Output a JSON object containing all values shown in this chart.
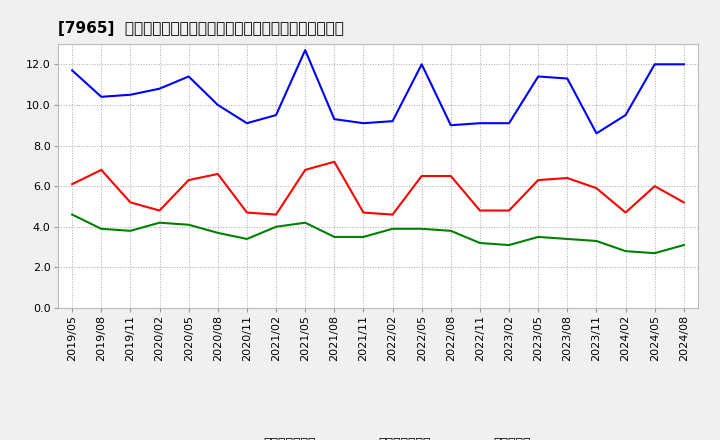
{
  "title": "[7965]  売上債権回転率、買入債務回転率、在庫回転率の推移",
  "dates": [
    "2019/05",
    "2019/08",
    "2019/11",
    "2020/02",
    "2020/05",
    "2020/08",
    "2020/11",
    "2021/02",
    "2021/05",
    "2021/08",
    "2021/11",
    "2022/02",
    "2022/05",
    "2022/08",
    "2022/11",
    "2023/02",
    "2023/05",
    "2023/08",
    "2023/11",
    "2024/02",
    "2024/05",
    "2024/08"
  ],
  "receivables": [
    6.1,
    6.8,
    5.2,
    4.8,
    6.3,
    6.6,
    4.7,
    4.6,
    6.8,
    7.2,
    4.7,
    4.6,
    6.5,
    6.5,
    4.8,
    4.8,
    6.3,
    6.4,
    5.9,
    4.7,
    6.0,
    5.2
  ],
  "payables": [
    11.7,
    10.4,
    10.5,
    10.8,
    11.4,
    10.0,
    9.1,
    9.5,
    12.7,
    9.3,
    9.1,
    9.2,
    12.0,
    9.0,
    9.1,
    9.1,
    11.4,
    11.3,
    8.6,
    9.5,
    12.0,
    12.0
  ],
  "inventory": [
    4.6,
    3.9,
    3.8,
    4.2,
    4.1,
    3.7,
    3.4,
    4.0,
    4.2,
    3.5,
    3.5,
    3.9,
    3.9,
    3.8,
    3.2,
    3.1,
    3.5,
    3.4,
    3.3,
    2.8,
    2.7,
    3.1
  ],
  "receivables_color": "#ff0000",
  "payables_color": "#0000ff",
  "inventory_color": "#008000",
  "ylim": [
    0.0,
    13.0
  ],
  "yticks": [
    0.0,
    2.0,
    4.0,
    6.0,
    8.0,
    10.0,
    12.0
  ],
  "background_color": "#f0f0f0",
  "plot_bg_color": "#ffffff",
  "grid_color": "#aaaaaa",
  "legend_labels": [
    "売上債権回転率",
    "買入債務回転率",
    "在庫回転率"
  ],
  "title_fontsize": 11,
  "tick_fontsize": 8,
  "legend_fontsize": 9
}
